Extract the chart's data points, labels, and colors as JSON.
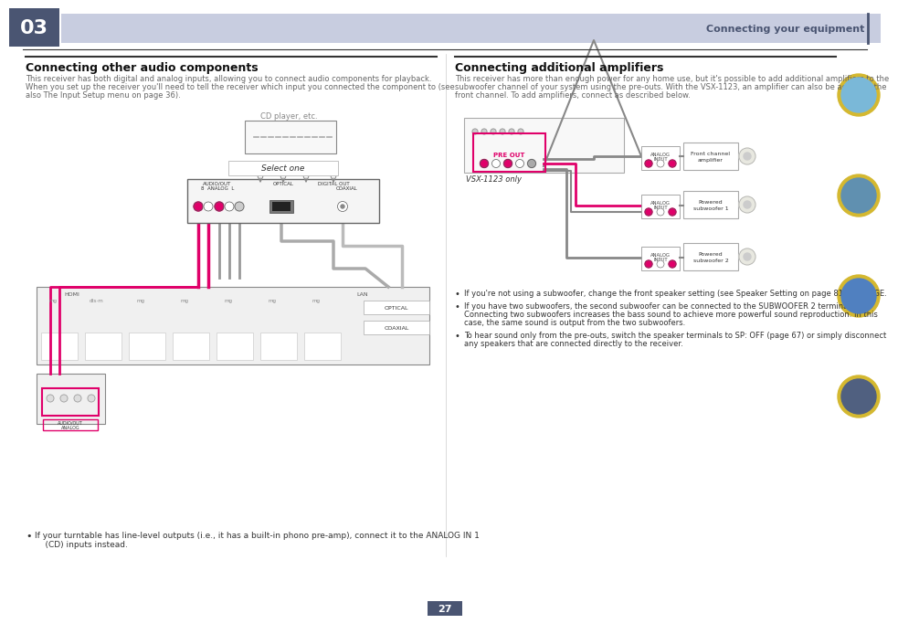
{
  "page_number": "27",
  "header_box_color": "#4a5572",
  "header_bar_color": "#c8cde0",
  "header_text": "Connecting your equipment",
  "section1_title": "Connecting other audio components",
  "section1_body_1": "This receiver has both digital and analog inputs, allowing you to connect audio components for playback.",
  "section1_body_2": "When you set up the receiver you'll need to tell the receiver which input you connected the component to (see",
  "section1_body_3": "also The Input Setup menu on page 36).",
  "section2_title": "Connecting additional amplifiers",
  "section2_body_1": "This receiver has more than enough power for any home use, but it's possible to add additional amplifiers to the",
  "section2_body_2": "subwoofer channel of your system using the pre-outs. With the VSX-1123, an amplifier can also be added to the",
  "section2_body_3": "front channel. To add amplifiers, connect as described below.",
  "bullet1": "If you're not using a subwoofer, change the front speaker setting (see Speaker Setting on page 81) to LARGE.",
  "bullet2a": "If you have two subwoofers, the second subwoofer can be connected to the SUBWOOFER 2 terminal.",
  "bullet2b": "Connecting two subwoofers increases the bass sound to achieve more powerful sound reproduction. In this",
  "bullet2c": "case, the same sound is output from the two subwoofers.",
  "bullet3a": "To hear sound only from the pre-outs, switch the speaker terminals to SP: OFF (page 67) or simply disconnect",
  "bullet3b": "any speakers that are connected directly to the receiver.",
  "footer1": "If your turntable has line-level outputs (i.e., it has a built-in phono pre-amp), connect it to the ANALOG IN 1",
  "footer2": "(CD) inputs instead.",
  "bg_color": "#ffffff",
  "accent_color": "#e0006a",
  "link_color": "#0088cc",
  "text_color": "#333333",
  "gray_text": "#666666",
  "header_box_color2": "#4a5572"
}
